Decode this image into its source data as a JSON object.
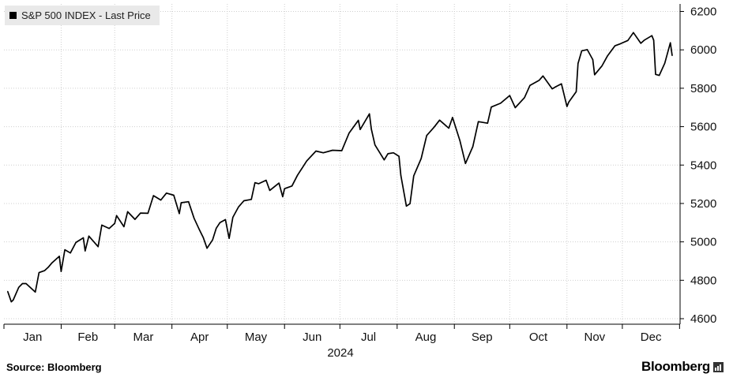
{
  "legend": {
    "label": "S&P 500 INDEX - Last Price",
    "color": "#000000"
  },
  "source": "Source: Bloomberg",
  "brand": {
    "name": "Bloomberg",
    "icon": "bloomberg-terminal-icon"
  },
  "chart_data": {
    "type": "line",
    "title": "",
    "year_label": "2024",
    "xlabel": "",
    "ylabel": "",
    "y_ticks": [
      "6200",
      "6000",
      "5800",
      "5600",
      "5400",
      "5200",
      "5000",
      "4800",
      "4600"
    ],
    "ylim": [
      4600,
      6200
    ],
    "x_ticks": [
      "Jan",
      "Feb",
      "Mar",
      "Apr",
      "May",
      "Jun",
      "Jul",
      "Aug",
      "Sep",
      "Oct",
      "Nov",
      "Dec"
    ],
    "grid": true,
    "axis_side": "right",
    "series": [
      {
        "name": "S&P 500 INDEX - Last Price",
        "color": "#000000",
        "x": [
          "2024-01-02",
          "2024-01-04",
          "2024-01-05",
          "2024-01-08",
          "2024-01-10",
          "2024-01-12",
          "2024-01-17",
          "2024-01-19",
          "2024-01-22",
          "2024-01-24",
          "2024-01-26",
          "2024-01-30",
          "2024-01-31",
          "2024-02-02",
          "2024-02-05",
          "2024-02-08",
          "2024-02-12",
          "2024-02-13",
          "2024-02-15",
          "2024-02-20",
          "2024-02-22",
          "2024-02-26",
          "2024-02-29",
          "2024-03-01",
          "2024-03-05",
          "2024-03-07",
          "2024-03-11",
          "2024-03-14",
          "2024-03-18",
          "2024-03-21",
          "2024-03-25",
          "2024-03-28",
          "2024-04-01",
          "2024-04-04",
          "2024-04-05",
          "2024-04-09",
          "2024-04-12",
          "2024-04-15",
          "2024-04-17",
          "2024-04-19",
          "2024-04-22",
          "2024-04-24",
          "2024-04-26",
          "2024-04-29",
          "2024-05-01",
          "2024-05-03",
          "2024-05-06",
          "2024-05-09",
          "2024-05-13",
          "2024-05-15",
          "2024-05-17",
          "2024-05-21",
          "2024-05-23",
          "2024-05-28",
          "2024-05-30",
          "2024-05-31",
          "2024-06-04",
          "2024-06-07",
          "2024-06-12",
          "2024-06-17",
          "2024-06-21",
          "2024-06-26",
          "2024-07-01",
          "2024-07-05",
          "2024-07-10",
          "2024-07-11",
          "2024-07-16",
          "2024-07-17",
          "2024-07-19",
          "2024-07-24",
          "2024-07-26",
          "2024-07-29",
          "2024-08-01",
          "2024-08-02",
          "2024-08-05",
          "2024-08-07",
          "2024-08-09",
          "2024-08-13",
          "2024-08-16",
          "2024-08-20",
          "2024-08-23",
          "2024-08-28",
          "2024-08-30",
          "2024-09-03",
          "2024-09-06",
          "2024-09-10",
          "2024-09-13",
          "2024-09-18",
          "2024-09-20",
          "2024-09-25",
          "2024-09-30",
          "2024-10-03",
          "2024-10-08",
          "2024-10-11",
          "2024-10-16",
          "2024-10-18",
          "2024-10-23",
          "2024-10-25",
          "2024-10-28",
          "2024-10-31",
          "2024-11-01",
          "2024-11-05",
          "2024-11-06",
          "2024-11-08",
          "2024-11-11",
          "2024-11-14",
          "2024-11-15",
          "2024-11-19",
          "2024-11-22",
          "2024-11-26",
          "2024-11-29",
          "2024-12-03",
          "2024-12-06",
          "2024-12-10",
          "2024-12-12",
          "2024-12-16",
          "2024-12-17",
          "2024-12-18",
          "2024-12-20",
          "2024-12-23",
          "2024-12-26",
          "2024-12-27"
        ],
        "values": [
          4742,
          4688,
          4697,
          4763,
          4783,
          4783,
          4739,
          4840,
          4850,
          4868,
          4891,
          4925,
          4846,
          4959,
          4942,
          4997,
          5021,
          4953,
          5030,
          4975,
          5087,
          5070,
          5096,
          5137,
          5079,
          5157,
          5117,
          5150,
          5149,
          5241,
          5218,
          5254,
          5243,
          5147,
          5204,
          5209,
          5123,
          5061,
          5022,
          4967,
          5010,
          5071,
          5100,
          5116,
          5018,
          5128,
          5181,
          5214,
          5221,
          5308,
          5303,
          5321,
          5268,
          5306,
          5235,
          5277,
          5291,
          5347,
          5421,
          5473,
          5464,
          5477,
          5475,
          5567,
          5633,
          5585,
          5667,
          5588,
          5505,
          5427,
          5459,
          5464,
          5446,
          5346,
          5186,
          5199,
          5344,
          5434,
          5554,
          5597,
          5634,
          5592,
          5648,
          5528,
          5408,
          5496,
          5626,
          5618,
          5702,
          5722,
          5762,
          5699,
          5751,
          5815,
          5842,
          5864,
          5797,
          5808,
          5823,
          5705,
          5728,
          5782,
          5929,
          5995,
          6001,
          5949,
          5870,
          5917,
          5969,
          6021,
          6032,
          6049,
          6090,
          6034,
          6051,
          6074,
          6050,
          5872,
          5867,
          5930,
          6037,
          5970
        ]
      }
    ]
  }
}
